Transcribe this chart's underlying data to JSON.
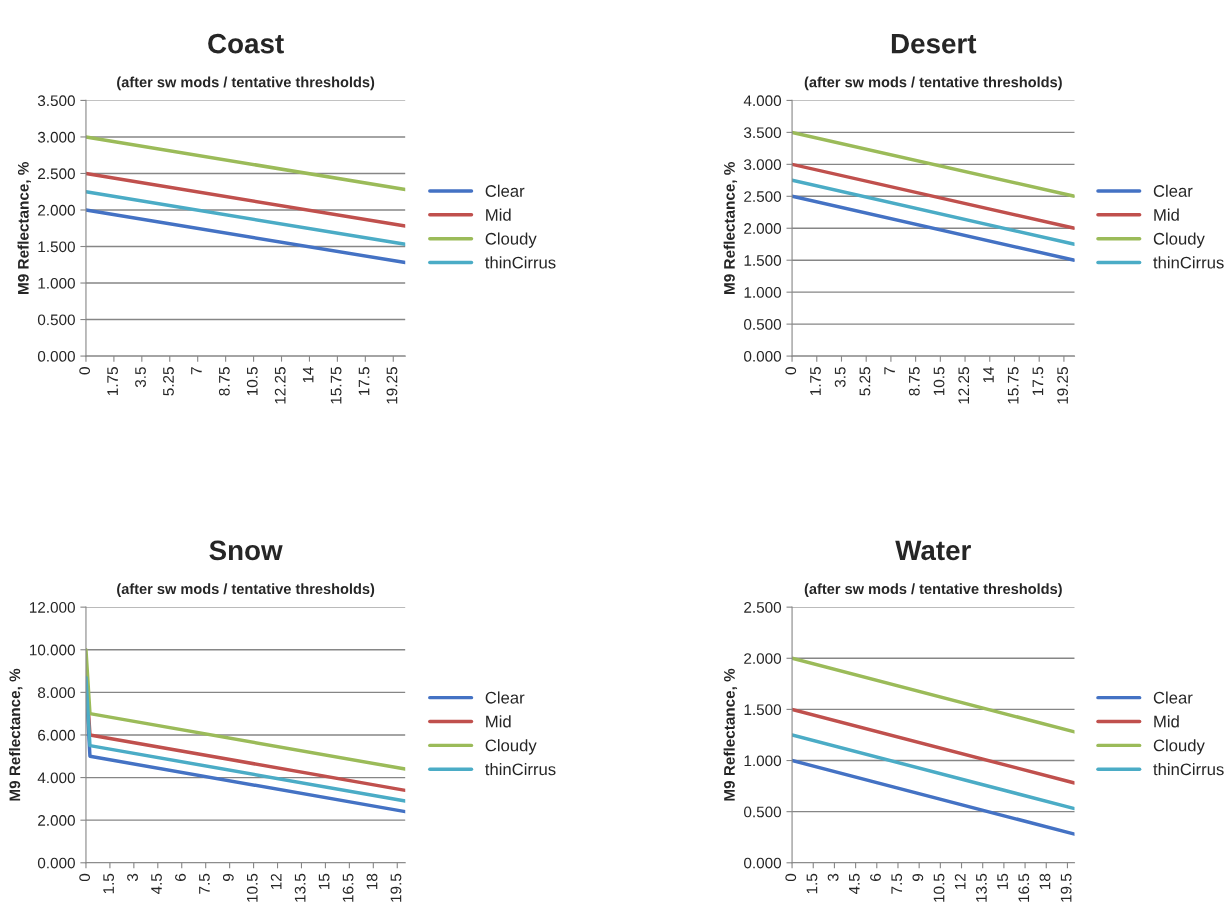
{
  "chart_data": [
    {
      "type": "line",
      "title": "Coast",
      "subtitle": "(after sw mods / tentative thresholds)",
      "ylabel": "M9 Reflectance, %",
      "x": [
        0,
        20
      ],
      "xlim": [
        0,
        20
      ],
      "xticks": [
        0,
        1.75,
        3.5,
        5.25,
        7,
        8.75,
        10.5,
        12.25,
        14,
        15.75,
        17.5,
        19.25
      ],
      "ylim": [
        0,
        3.5
      ],
      "yticks": [
        {
          "value": 0,
          "label": "0.000"
        },
        {
          "value": 0.5,
          "label": "0.500"
        },
        {
          "value": 1,
          "label": "1.000"
        },
        {
          "value": 1.5,
          "label": "1.500"
        },
        {
          "value": 2,
          "label": "2.000"
        },
        {
          "value": 2.5,
          "label": "2.500"
        },
        {
          "value": 3,
          "label": "3.000"
        },
        {
          "value": 3.5,
          "label": "3.500"
        }
      ],
      "grid": "y",
      "legend": "right",
      "series": [
        {
          "name": "Clear",
          "color": "#4472c4",
          "values": [
            2.0,
            1.28
          ]
        },
        {
          "name": "Mid",
          "color": "#c0504d",
          "values": [
            2.5,
            1.78
          ]
        },
        {
          "name": "Cloudy",
          "color": "#9bbb59",
          "values": [
            3.0,
            2.28
          ]
        },
        {
          "name": "thinCirrus",
          "color": "#4bacc6",
          "values": [
            2.25,
            1.53
          ]
        }
      ]
    },
    {
      "type": "line",
      "title": "Desert",
      "subtitle": "(after sw mods / tentative thresholds)",
      "ylabel": "M9 Reflectance, %",
      "x": [
        0,
        20
      ],
      "xlim": [
        0,
        20
      ],
      "xticks": [
        0,
        1.75,
        3.5,
        5.25,
        7,
        8.75,
        10.5,
        12.25,
        14,
        15.75,
        17.5,
        19.25
      ],
      "ylim": [
        0,
        4
      ],
      "yticks": [
        {
          "value": 0,
          "label": "0.000"
        },
        {
          "value": 0.5,
          "label": "0.500"
        },
        {
          "value": 1,
          "label": "1.000"
        },
        {
          "value": 1.5,
          "label": "1.500"
        },
        {
          "value": 2,
          "label": "2.000"
        },
        {
          "value": 2.5,
          "label": "2.500"
        },
        {
          "value": 3,
          "label": "3.000"
        },
        {
          "value": 3.5,
          "label": "3.500"
        },
        {
          "value": 4,
          "label": "4.000"
        }
      ],
      "grid": "y",
      "legend": "right",
      "series": [
        {
          "name": "Clear",
          "color": "#4472c4",
          "values": [
            2.5,
            1.5
          ]
        },
        {
          "name": "Mid",
          "color": "#c0504d",
          "values": [
            3.0,
            2.0
          ]
        },
        {
          "name": "Cloudy",
          "color": "#9bbb59",
          "values": [
            3.5,
            2.5
          ]
        },
        {
          "name": "thinCirrus",
          "color": "#4bacc6",
          "values": [
            2.75,
            1.75
          ]
        }
      ]
    },
    {
      "type": "line",
      "title": "Snow",
      "subtitle": "(after sw mods / tentative thresholds)",
      "ylabel": "M9 Reflectance, %",
      "x": [
        0,
        0.25,
        20
      ],
      "xlim": [
        0,
        20
      ],
      "xticks": [
        0,
        1.5,
        3,
        4.5,
        6,
        7.5,
        9,
        10.5,
        12,
        13.5,
        15,
        16.5,
        18,
        19.5
      ],
      "ylim": [
        0,
        12
      ],
      "yticks": [
        {
          "value": 0,
          "label": "0.000"
        },
        {
          "value": 2,
          "label": "2.000"
        },
        {
          "value": 4,
          "label": "4.000"
        },
        {
          "value": 6,
          "label": "6.000"
        },
        {
          "value": 8,
          "label": "8.000"
        },
        {
          "value": 10,
          "label": "10.000"
        },
        {
          "value": 12,
          "label": "12.000"
        }
      ],
      "grid": "y",
      "legend": "right",
      "series": [
        {
          "name": "Clear",
          "color": "#4472c4",
          "values": [
            8.5,
            5.0,
            2.4
          ]
        },
        {
          "name": "Mid",
          "color": "#c0504d",
          "values": [
            9.0,
            6.0,
            3.4
          ]
        },
        {
          "name": "Cloudy",
          "color": "#9bbb59",
          "values": [
            10.0,
            7.0,
            4.4
          ]
        },
        {
          "name": "thinCirrus",
          "color": "#4bacc6",
          "values": [
            8.7,
            5.5,
            2.9
          ]
        }
      ]
    },
    {
      "type": "line",
      "title": "Water",
      "subtitle": "(after sw mods / tentative thresholds)",
      "ylabel": "M9 Reflectance, %",
      "x": [
        0,
        20
      ],
      "xlim": [
        0,
        20
      ],
      "xticks": [
        0,
        1.5,
        3,
        4.5,
        6,
        7.5,
        9,
        10.5,
        12,
        13.5,
        15,
        16.5,
        18,
        19.5
      ],
      "ylim": [
        0,
        2.5
      ],
      "yticks": [
        {
          "value": 0,
          "label": "0.000"
        },
        {
          "value": 0.5,
          "label": "0.500"
        },
        {
          "value": 1,
          "label": "1.000"
        },
        {
          "value": 1.5,
          "label": "1.500"
        },
        {
          "value": 2,
          "label": "2.000"
        },
        {
          "value": 2.5,
          "label": "2.500"
        }
      ],
      "grid": "y",
      "legend": "right",
      "series": [
        {
          "name": "Clear",
          "color": "#4472c4",
          "values": [
            1.0,
            0.28
          ]
        },
        {
          "name": "Mid",
          "color": "#c0504d",
          "values": [
            1.5,
            0.78
          ]
        },
        {
          "name": "Cloudy",
          "color": "#9bbb59",
          "values": [
            2.0,
            1.28
          ]
        },
        {
          "name": "thinCirrus",
          "color": "#4bacc6",
          "values": [
            1.25,
            0.53
          ]
        }
      ]
    }
  ]
}
